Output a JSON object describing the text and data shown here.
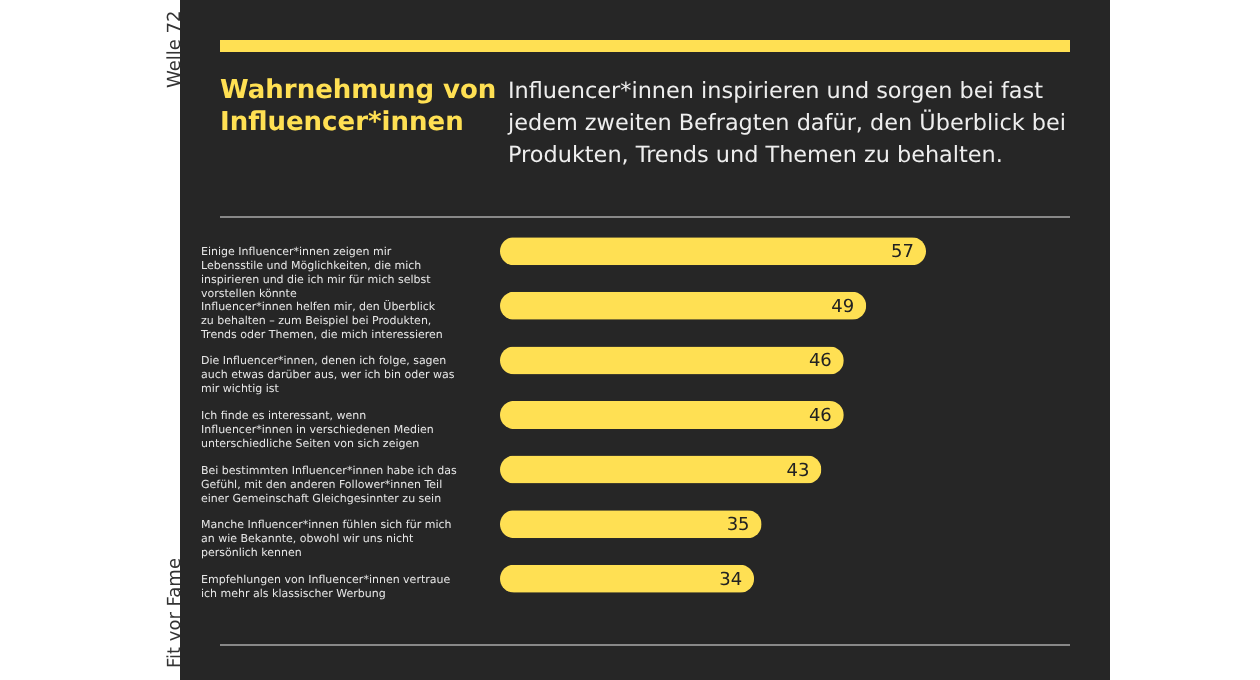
{
  "chart_data": {
    "type": "bar",
    "orientation": "horizontal",
    "title": "Wahrnehmung von Influencer*innen",
    "subtitle": "Influencer*innen inspirieren und sorgen bei fast jedem zweiten Befragten dafür, den Überblick bei Produkten, Trends und Themen zu behalten.",
    "categories": [
      "Einige Influencer*innen zeigen mir Lebensstile und Möglichkeiten, die mich inspirieren und die ich mir für mich selbst vorstellen könnte",
      "Influencer*innen helfen mir, den Überblick zu behalten – zum Beispiel bei Produkten, Trends oder Themen, die mich interessieren",
      "Die Influencer*innen, denen ich folge, sagen auch etwas darüber aus, wer ich bin oder was mir wichtig ist",
      "Ich finde es interessant, wenn Influencer*innen in verschiedenen Medien unterschiedliche Seiten von sich zeigen",
      "Bei bestimmten Influencer*innen habe ich das Gefühl, mit den anderen Follower*innen Teil einer Gemeinschaft Gleichgesinnter zu sein",
      "Manche Influencer*innen fühlen sich für mich an wie Bekannte, obwohl wir uns nicht persönlich kennen",
      "Empfehlungen von Influencer*innen vertraue ich mehr als klassischer Werbung"
    ],
    "values": [
      57,
      49,
      46,
      46,
      43,
      35,
      34
    ],
    "color": "#ffe053",
    "data_labels": true,
    "annotations": [
      "Welle 72",
      "Fit vor Fame"
    ]
  }
}
